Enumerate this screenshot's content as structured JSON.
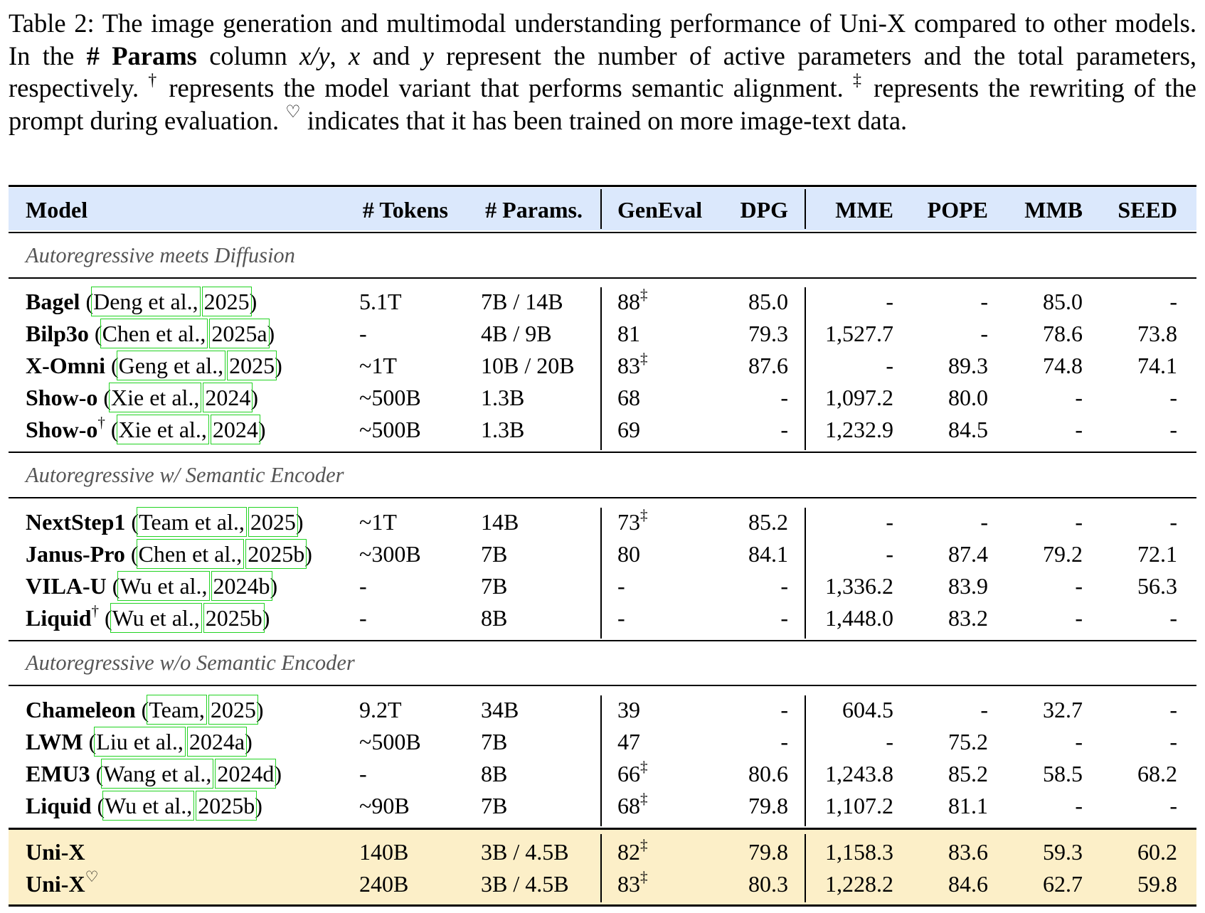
{
  "caption": {
    "prefix": "Table 2: The image generation and multimodal understanding performance of Uni-X compared to other models. In the ",
    "bold": "# Params",
    "part2": " column ",
    "var_xy": "x/y",
    "sep1": ", ",
    "var_x": "x",
    "part3": " and ",
    "var_y": "y",
    "part4": " represent the number of active parameters and the total parameters, respectively. ",
    "dagger": "†",
    "part5": " represents the model variant that performs semantic alignment. ",
    "ddagger": "‡",
    "part6": " represents the rewriting of the prompt during evaluation. ",
    "heart": "♡",
    "part7": " indicates that it has been trained on more image-text data."
  },
  "columns": {
    "model": "Model",
    "tokens": "# Tokens",
    "params": "# Params.",
    "geneval": "GenEval",
    "dpg": "DPG",
    "mme": "MME",
    "pope": "POPE",
    "mmb": "MMB",
    "seed": "SEED"
  },
  "groups": [
    {
      "title": "Autoregressive meets Diffusion",
      "rows": [
        {
          "name": "Bagel",
          "sup": "",
          "cite_a": "Deng et al.,",
          "cite_b": "2025",
          "tokens": "5.1T",
          "params": "7B / 14B",
          "geneval": "88",
          "geneval_sup": "‡",
          "dpg": "85.0",
          "mme": "-",
          "pope": "-",
          "mmb": "85.0",
          "seed": "-"
        },
        {
          "name": "Bilp3o",
          "sup": "",
          "cite_a": "Chen et al.,",
          "cite_b": "2025a",
          "tokens": "-",
          "params": "4B / 9B",
          "geneval": "81",
          "geneval_sup": "",
          "dpg": "79.3",
          "mme": "1,527.7",
          "pope": "-",
          "mmb": "78.6",
          "seed": "73.8"
        },
        {
          "name": "X-Omni",
          "sup": "",
          "cite_a": "Geng et al.,",
          "cite_b": "2025",
          "tokens": "~1T",
          "params": "10B / 20B",
          "geneval": "83",
          "geneval_sup": "‡",
          "dpg": "87.6",
          "mme": "-",
          "pope": "89.3",
          "mmb": "74.8",
          "seed": "74.1"
        },
        {
          "name": "Show-o",
          "sup": "",
          "cite_a": "Xie et al.,",
          "cite_b": "2024",
          "tokens": "~500B",
          "params": "1.3B",
          "geneval": "68",
          "geneval_sup": "",
          "dpg": "-",
          "mme": "1,097.2",
          "pope": "80.0",
          "mmb": "-",
          "seed": "-"
        },
        {
          "name": "Show-o",
          "sup": "†",
          "cite_a": "Xie et al.,",
          "cite_b": "2024",
          "tokens": "~500B",
          "params": "1.3B",
          "geneval": "69",
          "geneval_sup": "",
          "dpg": "-",
          "mme": "1,232.9",
          "pope": "84.5",
          "mmb": "-",
          "seed": "-"
        }
      ]
    },
    {
      "title": "Autoregressive w/ Semantic Encoder",
      "rows": [
        {
          "name": "NextStep1",
          "sup": "",
          "cite_a": "Team et al.,",
          "cite_b": "2025",
          "tokens": "~1T",
          "params": "14B",
          "geneval": "73",
          "geneval_sup": "‡",
          "dpg": "85.2",
          "mme": "-",
          "pope": "-",
          "mmb": "-",
          "seed": "-"
        },
        {
          "name": "Janus-Pro",
          "sup": "",
          "cite_a": "Chen et al.,",
          "cite_b": "2025b",
          "tokens": "~300B",
          "params": "7B",
          "geneval": "80",
          "geneval_sup": "",
          "dpg": "84.1",
          "mme": "-",
          "pope": "87.4",
          "mmb": "79.2",
          "seed": "72.1"
        },
        {
          "name": "VILA-U",
          "sup": "",
          "cite_a": "Wu et al.,",
          "cite_b": "2024b",
          "tokens": "-",
          "params": "7B",
          "geneval": "-",
          "geneval_sup": "",
          "dpg": "-",
          "mme": "1,336.2",
          "pope": "83.9",
          "mmb": "-",
          "seed": "56.3"
        },
        {
          "name": "Liquid",
          "sup": "†",
          "cite_a": "Wu et al.,",
          "cite_b": "2025b",
          "tokens": "-",
          "params": "8B",
          "geneval": "-",
          "geneval_sup": "",
          "dpg": "-",
          "mme": "1,448.0",
          "pope": "83.2",
          "mmb": "-",
          "seed": "-"
        }
      ]
    },
    {
      "title": "Autoregressive w/o Semantic Encoder",
      "rows": [
        {
          "name": "Chameleon",
          "sup": "",
          "cite_a": "Team,",
          "cite_b": "2025",
          "tokens": "9.2T",
          "params": "34B",
          "geneval": "39",
          "geneval_sup": "",
          "dpg": "-",
          "mme": "604.5",
          "pope": "-",
          "mmb": "32.7",
          "seed": "-"
        },
        {
          "name": "LWM",
          "sup": "",
          "cite_a": "Liu et al.,",
          "cite_b": "2024a",
          "tokens": "~500B",
          "params": "7B",
          "geneval": "47",
          "geneval_sup": "",
          "dpg": "-",
          "mme": "-",
          "pope": "75.2",
          "mmb": "-",
          "seed": "-"
        },
        {
          "name": "EMU3",
          "sup": "",
          "cite_a": "Wang et al.,",
          "cite_b": "2024d",
          "tokens": "-",
          "params": "8B",
          "geneval": "66",
          "geneval_sup": "‡",
          "dpg": "80.6",
          "mme": "1,243.8",
          "pope": "85.2",
          "mmb": "58.5",
          "seed": "68.2"
        },
        {
          "name": "Liquid",
          "sup": "",
          "cite_a": "Wu et al.,",
          "cite_b": "2025b",
          "tokens": "~90B",
          "params": "7B",
          "geneval": "68",
          "geneval_sup": "‡",
          "dpg": "79.8",
          "mme": "1,107.2",
          "pope": "81.1",
          "mmb": "-",
          "seed": "-"
        }
      ]
    }
  ],
  "ours": [
    {
      "name": "Uni-X",
      "sup": "",
      "tokens": "140B",
      "params": "3B / 4.5B",
      "geneval": "82",
      "geneval_sup": "‡",
      "dpg": "79.8",
      "mme": "1,158.3",
      "pope": "83.6",
      "mmb": "59.3",
      "seed": "60.2"
    },
    {
      "name": "Uni-X",
      "sup": "♡",
      "tokens": "240B",
      "params": "3B / 4.5B",
      "geneval": "83",
      "geneval_sup": "‡",
      "dpg": "80.3",
      "mme": "1,228.2",
      "pope": "84.6",
      "mmb": "62.7",
      "seed": "59.8"
    }
  ],
  "colors": {
    "header_band": "#dbe8fc",
    "highlight_band": "#fcefc8",
    "group_title": "#555555",
    "citation_box": "#22d322"
  }
}
